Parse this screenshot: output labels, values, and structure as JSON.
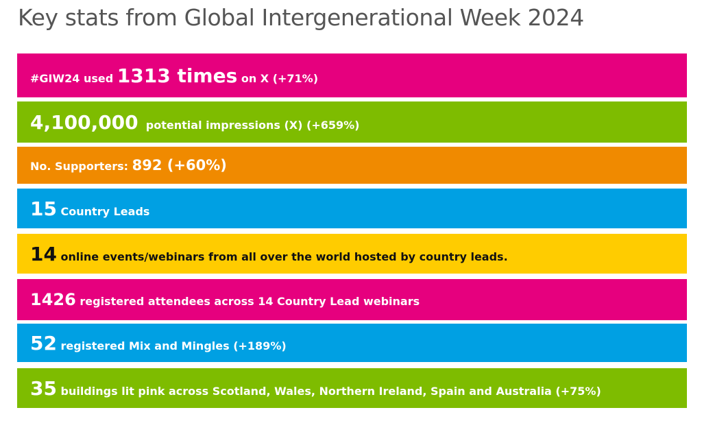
{
  "title": "Key stats from Global Intergenerational Week 2024",
  "stats": [
    {
      "color": "#e6007e",
      "pre": "#GIW24 used ",
      "num": "1313 times",
      "post": " on X (+71%)"
    },
    {
      "color": "#7ebc00",
      "num": "4,100,000",
      "post": "  potential impressions (X) (+659%)"
    },
    {
      "color": "#f08a00",
      "pre": "No. Supporters: ",
      "num": "892 (+60%)"
    },
    {
      "color": "#00a0e3",
      "num": "15",
      "post": " Country Leads"
    },
    {
      "color": "#ffcc00",
      "num": "14",
      "post": " online events/webinars from all over the world hosted by country leads."
    },
    {
      "color": "#e6007e",
      "num": "1426",
      "post": " registered attendees across 14 Country Lead webinars"
    },
    {
      "color": "#00a0e3",
      "num": "52",
      "post": " registered Mix and Mingles (+189%)"
    },
    {
      "color": "#7ebc00",
      "num": "35",
      "post": " buildings lit pink across Scotland, Wales, Northern Ireland, Spain and Australia (+75%)"
    }
  ]
}
